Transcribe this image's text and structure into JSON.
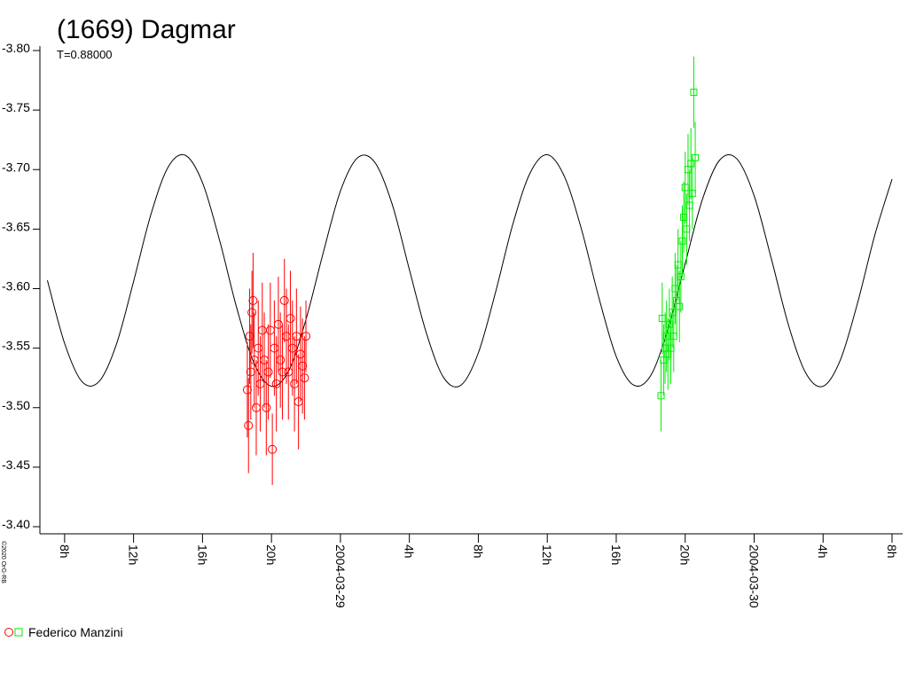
{
  "chart_data": {
    "type": "lightcurve",
    "title": "(1669) Dagmar",
    "subtitle": "T=0.88000",
    "legend_label": "Federico Manzini",
    "credit": "©2020 OrG-RB",
    "xlim": [
      "2004-03-28 06:34",
      "2004-03-30 08:37"
    ],
    "xticks": [
      {
        "value": "2004-03-28 08:00",
        "label": "8h"
      },
      {
        "value": "2004-03-28 12:00",
        "label": "12h"
      },
      {
        "value": "2004-03-28 16:00",
        "label": "16h"
      },
      {
        "value": "2004-03-28 20:00",
        "label": "20h"
      },
      {
        "value": "2004-03-29 00:00",
        "label": "2004-03-29"
      },
      {
        "value": "2004-03-29 04:00",
        "label": "4h"
      },
      {
        "value": "2004-03-29 08:00",
        "label": "8h"
      },
      {
        "value": "2004-03-29 12:00",
        "label": "12h"
      },
      {
        "value": "2004-03-29 16:00",
        "label": "16h"
      },
      {
        "value": "2004-03-29 20:00",
        "label": "20h"
      },
      {
        "value": "2004-03-30 00:00",
        "label": "2004-03-30"
      },
      {
        "value": "2004-03-30 04:00",
        "label": "4h"
      },
      {
        "value": "2004-03-30 08:00",
        "label": "8h"
      }
    ],
    "ylim": [
      -3.4,
      -3.8
    ],
    "yticks": [
      {
        "value": -3.8,
        "label": "-3.80"
      },
      {
        "value": -3.75,
        "label": "-3.75"
      },
      {
        "value": -3.7,
        "label": "-3.70"
      },
      {
        "value": -3.65,
        "label": "-3.65"
      },
      {
        "value": -3.6,
        "label": "-3.60"
      },
      {
        "value": -3.55,
        "label": "-3.55"
      },
      {
        "value": -3.5,
        "label": "-3.50"
      },
      {
        "value": -3.45,
        "label": "-3.45"
      },
      {
        "value": -3.4,
        "label": "-3.40"
      }
    ],
    "curve": {
      "color": "#000000",
      "x": [
        "2004-03-28 07:00",
        "2004-03-28 08:00",
        "2004-03-28 09:00",
        "2004-03-28 10:00",
        "2004-03-28 11:00",
        "2004-03-28 12:00",
        "2004-03-28 13:00",
        "2004-03-28 14:00",
        "2004-03-28 15:00",
        "2004-03-28 16:00",
        "2004-03-28 17:00",
        "2004-03-28 18:00",
        "2004-03-28 19:00",
        "2004-03-28 20:00",
        "2004-03-28 21:00",
        "2004-03-28 22:00",
        "2004-03-28 23:00",
        "2004-03-29 00:00",
        "2004-03-29 01:00",
        "2004-03-29 02:00",
        "2004-03-29 03:00",
        "2004-03-29 04:00",
        "2004-03-29 05:00",
        "2004-03-29 06:00",
        "2004-03-29 07:00",
        "2004-03-29 08:00",
        "2004-03-29 09:00",
        "2004-03-29 10:00",
        "2004-03-29 11:00",
        "2004-03-29 12:00",
        "2004-03-29 13:00",
        "2004-03-29 14:00",
        "2004-03-29 15:00",
        "2004-03-29 16:00",
        "2004-03-29 17:00",
        "2004-03-29 18:00",
        "2004-03-29 19:00",
        "2004-03-29 20:00",
        "2004-03-29 21:00",
        "2004-03-29 22:00",
        "2004-03-29 23:00",
        "2004-03-30 00:00",
        "2004-03-30 01:00",
        "2004-03-30 02:00",
        "2004-03-30 03:00",
        "2004-03-30 04:00",
        "2004-03-30 05:00",
        "2004-03-30 06:00",
        "2004-03-30 07:00",
        "2004-03-30 08:00"
      ],
      "values": [
        -3.607,
        -3.554,
        -3.522,
        -3.522,
        -3.553,
        -3.606,
        -3.662,
        -3.702,
        -3.712,
        -3.689,
        -3.64,
        -3.583,
        -3.537,
        -3.518,
        -3.531,
        -3.574,
        -3.63,
        -3.682,
        -3.71,
        -3.706,
        -3.671,
        -3.616,
        -3.562,
        -3.525,
        -3.519,
        -3.546,
        -3.597,
        -3.654,
        -3.697,
        -3.7125,
        -3.694,
        -3.649,
        -3.592,
        -3.543,
        -3.519,
        -3.527,
        -3.566,
        -3.621,
        -3.675,
        -3.708,
        -3.709,
        -3.678,
        -3.625,
        -3.569,
        -3.529,
        -3.518,
        -3.54,
        -3.588,
        -3.645,
        -3.692
      ]
    },
    "series": [
      {
        "color": "#ff0000",
        "marker": "circle",
        "x": [
          "2004-03-28 18:36",
          "2004-03-28 18:40",
          "2004-03-28 18:44",
          "2004-03-28 18:48",
          "2004-03-28 18:52",
          "2004-03-28 18:56",
          "2004-03-28 19:00",
          "2004-03-28 19:07",
          "2004-03-28 19:14",
          "2004-03-28 19:21",
          "2004-03-28 19:28",
          "2004-03-28 19:35",
          "2004-03-28 19:42",
          "2004-03-28 19:49",
          "2004-03-28 19:56",
          "2004-03-28 20:03",
          "2004-03-28 20:10",
          "2004-03-28 20:17",
          "2004-03-28 20:24",
          "2004-03-28 20:31",
          "2004-03-28 20:38",
          "2004-03-28 20:45",
          "2004-03-28 20:52",
          "2004-03-28 20:59",
          "2004-03-28 21:06",
          "2004-03-28 21:13",
          "2004-03-28 21:20",
          "2004-03-28 21:27",
          "2004-03-28 21:34",
          "2004-03-28 21:41",
          "2004-03-28 21:48",
          "2004-03-28 21:55",
          "2004-03-28 22:00"
        ],
        "values": [
          -3.515,
          -3.485,
          -3.56,
          -3.53,
          -3.58,
          -3.59,
          -3.54,
          -3.5,
          -3.55,
          -3.52,
          -3.565,
          -3.54,
          -3.5,
          -3.53,
          -3.565,
          -3.465,
          -3.55,
          -3.52,
          -3.57,
          -3.54,
          -3.53,
          -3.59,
          -3.56,
          -3.53,
          -3.575,
          -3.55,
          -3.52,
          -3.56,
          -3.505,
          -3.545,
          -3.535,
          -3.525,
          -3.56
        ],
        "errors": [
          0.04,
          0.04,
          0.04,
          0.04,
          0.035,
          0.04,
          0.04,
          0.04,
          0.04,
          0.04,
          0.04,
          0.04,
          0.04,
          0.04,
          0.04,
          0.03,
          0.04,
          0.04,
          0.04,
          0.04,
          0.04,
          0.035,
          0.04,
          0.04,
          0.04,
          0.04,
          0.04,
          0.04,
          0.04,
          0.04,
          0.04,
          0.035,
          0.03
        ]
      },
      {
        "color": "#00ee00",
        "marker": "square",
        "x": [
          "2004-03-29 18:36",
          "2004-03-29 18:40",
          "2004-03-29 18:45",
          "2004-03-29 18:50",
          "2004-03-29 18:55",
          "2004-03-29 19:00",
          "2004-03-29 19:05",
          "2004-03-29 19:10",
          "2004-03-29 19:15",
          "2004-03-29 19:20",
          "2004-03-29 19:25",
          "2004-03-29 19:30",
          "2004-03-29 19:35",
          "2004-03-29 19:40",
          "2004-03-29 19:45",
          "2004-03-29 19:50",
          "2004-03-29 19:55",
          "2004-03-29 20:00",
          "2004-03-29 20:05",
          "2004-03-29 20:10",
          "2004-03-29 20:15",
          "2004-03-29 20:20",
          "2004-03-29 20:25",
          "2004-03-29 20:30",
          "2004-03-29 20:35"
        ],
        "values": [
          -3.51,
          -3.575,
          -3.54,
          -3.55,
          -3.56,
          -3.545,
          -3.57,
          -3.55,
          -3.58,
          -3.56,
          -3.6,
          -3.59,
          -3.62,
          -3.585,
          -3.61,
          -3.64,
          -3.66,
          -3.685,
          -3.65,
          -3.7,
          -3.67,
          -3.705,
          -3.68,
          -3.765,
          -3.71
        ],
        "errors": [
          0.03,
          0.03,
          0.03,
          0.03,
          0.03,
          0.03,
          0.03,
          0.03,
          0.03,
          0.03,
          0.03,
          0.03,
          0.03,
          0.03,
          0.03,
          0.03,
          0.03,
          0.03,
          0.03,
          0.03,
          0.03,
          0.03,
          0.03,
          0.03,
          0.03
        ]
      }
    ]
  }
}
